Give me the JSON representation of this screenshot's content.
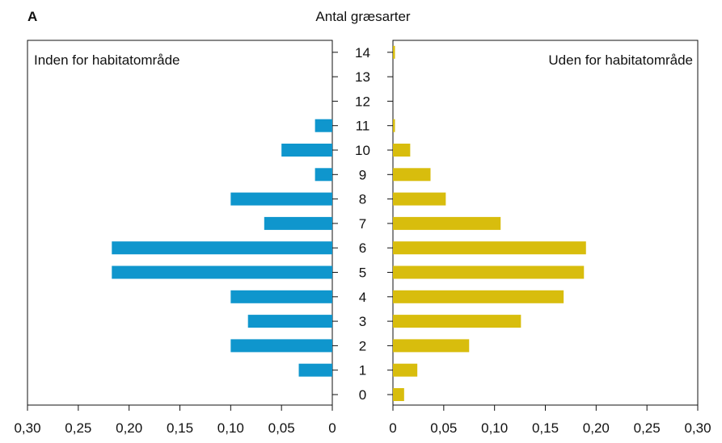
{
  "panel_label": "A",
  "chart_data": {
    "type": "bar",
    "orientation": "horizontal",
    "layout": "back-to-back",
    "title": "Antal græsarter",
    "categories": [
      "0",
      "1",
      "2",
      "3",
      "4",
      "5",
      "6",
      "7",
      "8",
      "9",
      "10",
      "11",
      "12",
      "13",
      "14"
    ],
    "xlim": [
      0,
      0.3
    ],
    "x_ticks": [
      0,
      0.05,
      0.1,
      0.15,
      0.2,
      0.25,
      0.3
    ],
    "x_tick_labels": [
      "0",
      "0,05",
      "0,10",
      "0,15",
      "0,20",
      "0,25",
      "0,30"
    ],
    "grid": false,
    "series": [
      {
        "name": "Inden for habitatområde",
        "side": "left",
        "color": "#0f96cd",
        "values": [
          0,
          0.033,
          0.1,
          0.083,
          0.1,
          0.217,
          0.217,
          0.067,
          0.1,
          0.017,
          0.05,
          0.017,
          0,
          0,
          0
        ]
      },
      {
        "name": "Uden for habitatområde",
        "side": "right",
        "color": "#d8bd0d",
        "values": [
          0.011,
          0.024,
          0.075,
          0.126,
          0.168,
          0.188,
          0.19,
          0.106,
          0.052,
          0.037,
          0.017,
          0.002,
          0,
          0,
          0.002
        ]
      }
    ]
  }
}
